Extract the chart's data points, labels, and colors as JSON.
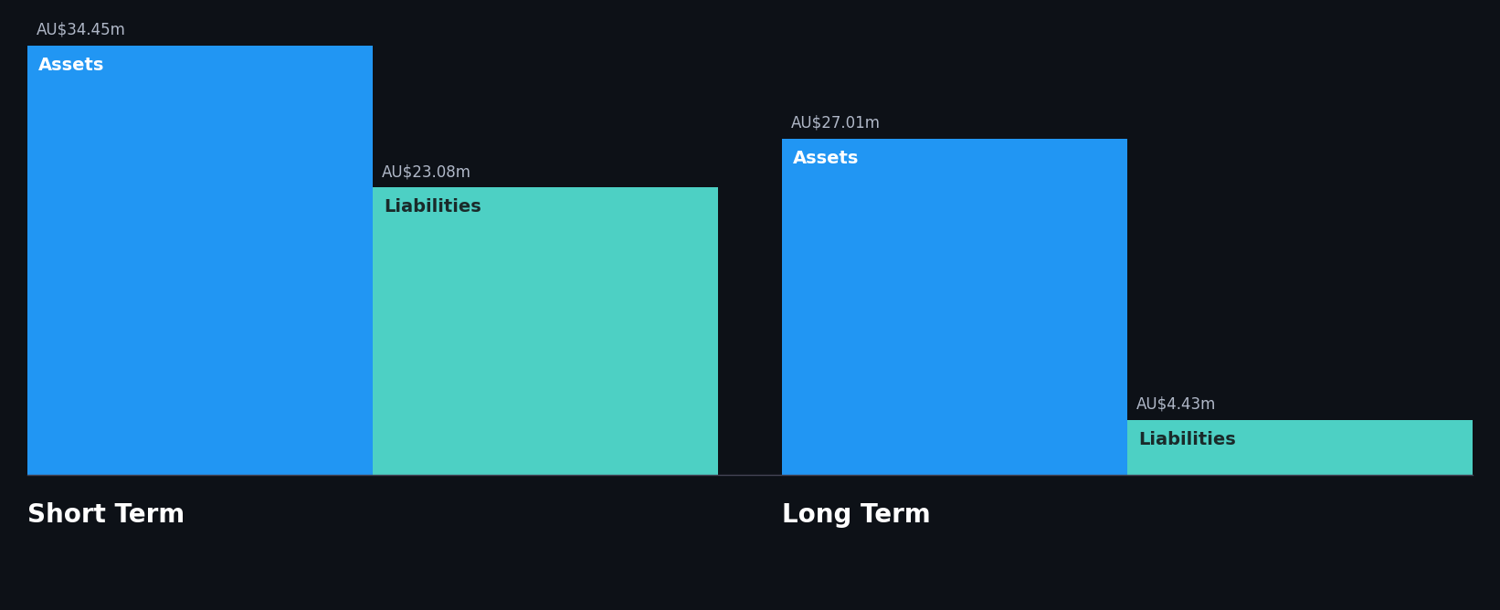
{
  "background_color": "#0d1117",
  "short_term": {
    "assets_value": 34.45,
    "liabilities_value": 23.08,
    "assets_label": "Assets",
    "liabilities_label": "Liabilities",
    "assets_value_label": "AU$34.45m",
    "liabilities_value_label": "AU$23.08m",
    "label": "Short Term"
  },
  "long_term": {
    "assets_value": 27.01,
    "liabilities_value": 4.43,
    "assets_label": "Assets",
    "liabilities_label": "Liabilities",
    "assets_value_label": "AU$27.01m",
    "liabilities_value_label": "AU$4.43m",
    "label": "Long Term"
  },
  "assets_color": "#2196f3",
  "liabilities_color": "#4dd0c4",
  "text_color": "#ffffff",
  "label_color": "#b0b8c8",
  "max_value": 34.45,
  "value_fontsize": 12,
  "section_fontsize": 20,
  "inner_label_fontsize": 14
}
